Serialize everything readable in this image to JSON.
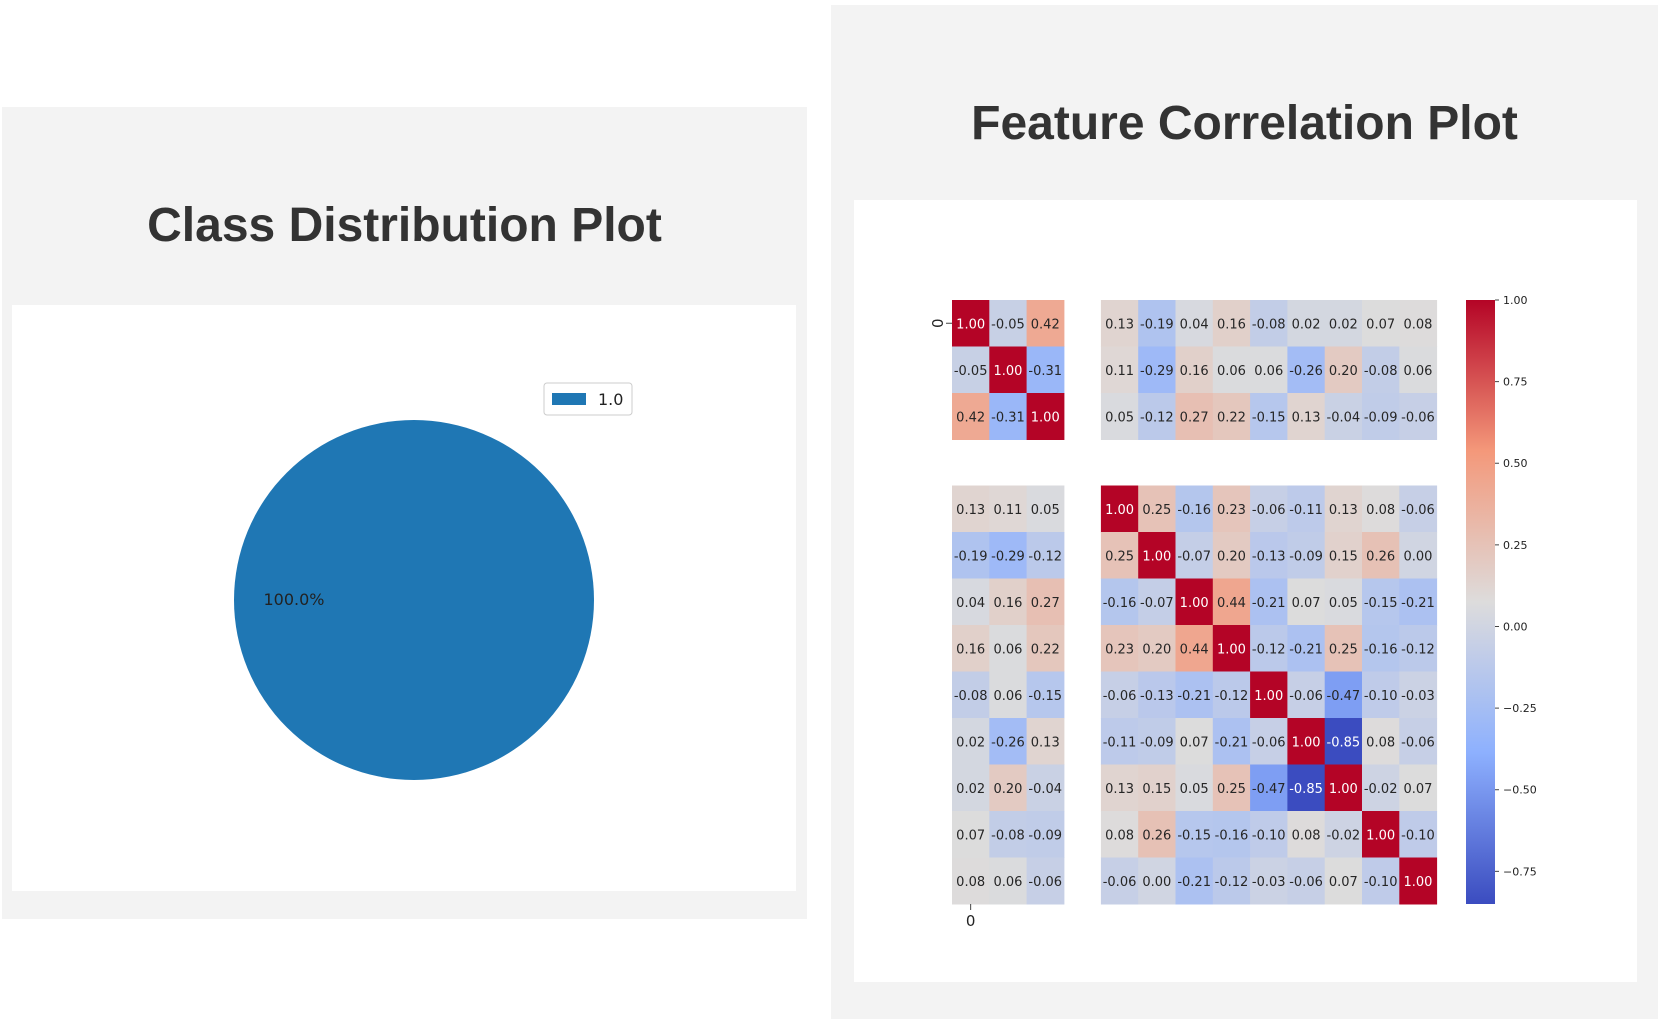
{
  "left_panel": {
    "title": "Class Distribution Plot"
  },
  "right_panel": {
    "title": "Feature Correlation Plot"
  },
  "chart_data": [
    {
      "type": "pie",
      "labels": [
        "1.0"
      ],
      "values": [
        100.0
      ],
      "slice_labels": [
        "100.0%"
      ],
      "legend": [
        "1.0"
      ],
      "legend_placement": "top-right",
      "colors": [
        "#1f77b4"
      ]
    },
    {
      "type": "heatmap",
      "colormap": "coolwarm",
      "value_range": [
        -0.85,
        1.0
      ],
      "colorbar_ticks": [
        "1.00",
        "0.75",
        "0.50",
        "0.25",
        "0.00",
        "−0.25",
        "−0.50",
        "−0.75"
      ],
      "colorbar_tick_values": [
        1.0,
        0.75,
        0.5,
        0.25,
        0.0,
        -0.25,
        -0.5,
        -0.75
      ],
      "x_tick_labels": [
        "0"
      ],
      "y_tick_labels": [
        "0"
      ],
      "matrix": [
        [
          1.0,
          -0.05,
          0.42,
          0.13,
          -0.19,
          0.04,
          0.16,
          -0.08,
          0.02,
          0.02,
          0.07,
          0.08
        ],
        [
          -0.05,
          1.0,
          -0.31,
          0.11,
          -0.29,
          0.16,
          0.06,
          0.06,
          -0.26,
          0.2,
          -0.08,
          0.06
        ],
        [
          0.42,
          -0.31,
          1.0,
          0.05,
          -0.12,
          0.27,
          0.22,
          -0.15,
          0.13,
          -0.04,
          -0.09,
          -0.06
        ],
        [
          0.13,
          0.11,
          0.05,
          1.0,
          0.25,
          -0.16,
          0.23,
          -0.06,
          -0.11,
          0.13,
          0.08,
          -0.06
        ],
        [
          -0.19,
          -0.29,
          -0.12,
          0.25,
          1.0,
          -0.07,
          0.2,
          -0.13,
          -0.09,
          0.15,
          0.26,
          0.0
        ],
        [
          0.04,
          0.16,
          0.27,
          -0.16,
          -0.07,
          1.0,
          0.44,
          -0.21,
          0.07,
          0.05,
          -0.15,
          -0.21
        ],
        [
          0.16,
          0.06,
          0.22,
          0.23,
          0.2,
          0.44,
          1.0,
          -0.12,
          -0.21,
          0.25,
          -0.16,
          -0.12
        ],
        [
          -0.08,
          0.06,
          -0.15,
          -0.06,
          -0.13,
          -0.21,
          -0.12,
          1.0,
          -0.06,
          -0.47,
          -0.1,
          -0.03
        ],
        [
          0.02,
          -0.26,
          0.13,
          -0.11,
          -0.09,
          0.07,
          -0.21,
          -0.06,
          1.0,
          -0.85,
          0.08,
          -0.06
        ],
        [
          0.02,
          0.2,
          -0.04,
          0.13,
          0.15,
          0.05,
          0.25,
          -0.47,
          -0.85,
          1.0,
          -0.02,
          0.07
        ],
        [
          0.07,
          -0.08,
          -0.09,
          0.08,
          0.26,
          -0.15,
          -0.16,
          -0.1,
          0.08,
          -0.02,
          1.0,
          -0.1
        ],
        [
          0.08,
          0.06,
          -0.06,
          -0.06,
          0.0,
          -0.21,
          -0.12,
          -0.03,
          -0.06,
          0.07,
          -0.1,
          1.0
        ]
      ]
    }
  ]
}
